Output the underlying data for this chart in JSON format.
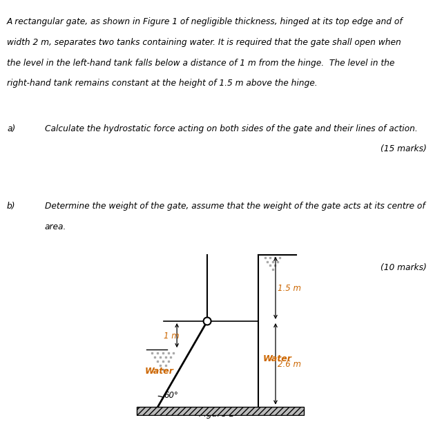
{
  "title_line1": "A rectangular gate, as shown in Figure 1 of negligible thickness, hinged at its top edge and of",
  "title_line2": "width 2 m, separates two tanks containing water. It is required that the gate shall open when",
  "title_line3": "the level in the left-hand tank falls below a distance of 1 m from the hinge.  The level in the",
  "title_line4": "right-hand tank remains constant at the height of 1.5 m above the hinge.",
  "part_a_label": "a)",
  "part_a_text": "Calculate the hydrostatic force acting on both sides of the gate and their lines of action.",
  "part_a_marks": "(15 marks)",
  "part_b_label": "b)",
  "part_b_text1": "Determine the weight of the gate, assume that the weight of the gate acts at its centre of",
  "part_b_text2": "area.",
  "part_b_marks": "(10 marks)",
  "figure_caption": "Figure 1",
  "label_1m": "1 m",
  "label_15m": "1.5 m",
  "label_water_left": "Water",
  "label_water_right": "Water",
  "label_26m": "2.6 m",
  "label_60deg": "60°",
  "text_color": "#000000",
  "orange_color": "#CC6600",
  "bg_color": "#ffffff"
}
